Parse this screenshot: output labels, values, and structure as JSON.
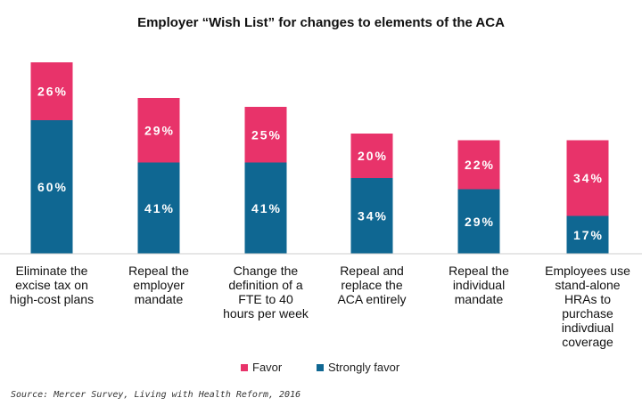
{
  "chart_data": {
    "type": "bar",
    "stacked": true,
    "title": "Employer “Wish List” for changes to elements of the ACA",
    "categories": [
      [
        "Eliminate the",
        "excise tax on",
        "high-cost plans"
      ],
      [
        "Repeal the",
        "employer",
        "mandate"
      ],
      [
        "Change the",
        "definition of a",
        "FTE to 40",
        "hours per week"
      ],
      [
        "Repeal and",
        "replace the",
        "ACA entirely"
      ],
      [
        "Repeal the",
        "individual",
        "mandate"
      ],
      [
        "Employees use",
        "stand-alone",
        "HRAs to",
        "purchase",
        "indivdiual",
        "coverage"
      ]
    ],
    "series": [
      {
        "name": "Strongly favor",
        "color": "#0f6792",
        "values": [
          60,
          41,
          41,
          34,
          29,
          17
        ]
      },
      {
        "name": "Favor",
        "color": "#e8336a",
        "values": [
          26,
          29,
          25,
          20,
          22,
          34
        ]
      }
    ],
    "legend_position": "bottom",
    "ylim": [
      0,
      90
    ],
    "xlabel": "",
    "ylabel": "",
    "source": "Source: Mercer Survey, Living with Health Reform, 2016"
  }
}
